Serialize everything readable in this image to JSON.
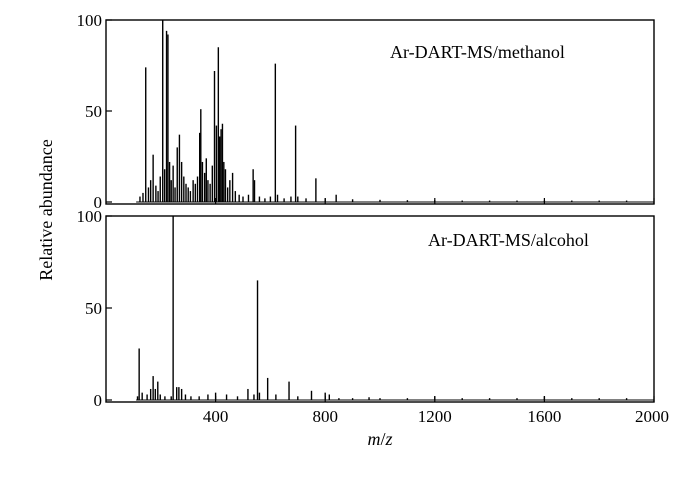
{
  "chart_data": [
    {
      "type": "bar",
      "label": "Ar-DART-MS/methanol",
      "ylim": [
        0,
        100
      ],
      "xlim": [
        0,
        2000
      ],
      "y_ticks": [
        "0",
        "50",
        "100"
      ],
      "peaks": [
        {
          "x": 124,
          "y": 3
        },
        {
          "x": 135,
          "y": 5
        },
        {
          "x": 145,
          "y": 74
        },
        {
          "x": 155,
          "y": 8
        },
        {
          "x": 163,
          "y": 12
        },
        {
          "x": 172,
          "y": 26
        },
        {
          "x": 182,
          "y": 9
        },
        {
          "x": 190,
          "y": 6
        },
        {
          "x": 198,
          "y": 14
        },
        {
          "x": 207,
          "y": 100
        },
        {
          "x": 214,
          "y": 18
        },
        {
          "x": 221,
          "y": 94
        },
        {
          "x": 226,
          "y": 92
        },
        {
          "x": 232,
          "y": 22
        },
        {
          "x": 238,
          "y": 12
        },
        {
          "x": 245,
          "y": 20
        },
        {
          "x": 252,
          "y": 8
        },
        {
          "x": 260,
          "y": 30
        },
        {
          "x": 268,
          "y": 37
        },
        {
          "x": 276,
          "y": 22
        },
        {
          "x": 284,
          "y": 14
        },
        {
          "x": 292,
          "y": 10
        },
        {
          "x": 300,
          "y": 8
        },
        {
          "x": 308,
          "y": 6
        },
        {
          "x": 318,
          "y": 12
        },
        {
          "x": 326,
          "y": 10
        },
        {
          "x": 334,
          "y": 14
        },
        {
          "x": 342,
          "y": 38
        },
        {
          "x": 346,
          "y": 51
        },
        {
          "x": 352,
          "y": 22
        },
        {
          "x": 360,
          "y": 16
        },
        {
          "x": 366,
          "y": 24
        },
        {
          "x": 372,
          "y": 12
        },
        {
          "x": 380,
          "y": 10
        },
        {
          "x": 388,
          "y": 20
        },
        {
          "x": 396,
          "y": 72
        },
        {
          "x": 403,
          "y": 42
        },
        {
          "x": 410,
          "y": 85
        },
        {
          "x": 415,
          "y": 36
        },
        {
          "x": 420,
          "y": 40
        },
        {
          "x": 425,
          "y": 43
        },
        {
          "x": 430,
          "y": 22
        },
        {
          "x": 436,
          "y": 18
        },
        {
          "x": 444,
          "y": 8
        },
        {
          "x": 452,
          "y": 12
        },
        {
          "x": 462,
          "y": 16
        },
        {
          "x": 472,
          "y": 6
        },
        {
          "x": 486,
          "y": 4
        },
        {
          "x": 500,
          "y": 3
        },
        {
          "x": 520,
          "y": 4
        },
        {
          "x": 537,
          "y": 18
        },
        {
          "x": 542,
          "y": 12
        },
        {
          "x": 560,
          "y": 3
        },
        {
          "x": 580,
          "y": 2
        },
        {
          "x": 600,
          "y": 3
        },
        {
          "x": 618,
          "y": 76
        },
        {
          "x": 626,
          "y": 4
        },
        {
          "x": 650,
          "y": 2
        },
        {
          "x": 675,
          "y": 3
        },
        {
          "x": 692,
          "y": 42
        },
        {
          "x": 700,
          "y": 3
        },
        {
          "x": 730,
          "y": 2
        },
        {
          "x": 766,
          "y": 13
        },
        {
          "x": 800,
          "y": 2
        },
        {
          "x": 840,
          "y": 4
        },
        {
          "x": 900,
          "y": 1.5
        },
        {
          "x": 1000,
          "y": 1.2
        },
        {
          "x": 1100,
          "y": 1
        },
        {
          "x": 1200,
          "y": 1
        },
        {
          "x": 1300,
          "y": 0.8
        },
        {
          "x": 1400,
          "y": 0.8
        },
        {
          "x": 1500,
          "y": 0.8
        },
        {
          "x": 1600,
          "y": 0.8
        },
        {
          "x": 1700,
          "y": 0.8
        },
        {
          "x": 1800,
          "y": 0.8
        },
        {
          "x": 1900,
          "y": 0.8
        }
      ]
    },
    {
      "type": "bar",
      "label": "Ar-DART-MS/alcohol",
      "ylim": [
        0,
        100
      ],
      "xlim": [
        0,
        2000
      ],
      "y_ticks": [
        "0",
        "50",
        "100"
      ],
      "x_ticks": [
        "400",
        "800",
        "1200",
        "1600",
        "2000"
      ],
      "x_tick_values": [
        400,
        800,
        1200,
        1600,
        2000
      ],
      "peaks": [
        {
          "x": 115,
          "y": 2
        },
        {
          "x": 121,
          "y": 28
        },
        {
          "x": 132,
          "y": 4
        },
        {
          "x": 150,
          "y": 3
        },
        {
          "x": 163,
          "y": 6
        },
        {
          "x": 172,
          "y": 13
        },
        {
          "x": 180,
          "y": 6
        },
        {
          "x": 189,
          "y": 10
        },
        {
          "x": 198,
          "y": 3
        },
        {
          "x": 215,
          "y": 2
        },
        {
          "x": 238,
          "y": 2
        },
        {
          "x": 245,
          "y": 100
        },
        {
          "x": 258,
          "y": 7
        },
        {
          "x": 266,
          "y": 7
        },
        {
          "x": 276,
          "y": 6
        },
        {
          "x": 290,
          "y": 3
        },
        {
          "x": 310,
          "y": 2
        },
        {
          "x": 340,
          "y": 2
        },
        {
          "x": 372,
          "y": 3
        },
        {
          "x": 400,
          "y": 4
        },
        {
          "x": 440,
          "y": 3
        },
        {
          "x": 480,
          "y": 2
        },
        {
          "x": 518,
          "y": 6
        },
        {
          "x": 540,
          "y": 3
        },
        {
          "x": 553,
          "y": 65
        },
        {
          "x": 560,
          "y": 4
        },
        {
          "x": 590,
          "y": 12
        },
        {
          "x": 620,
          "y": 3
        },
        {
          "x": 668,
          "y": 10
        },
        {
          "x": 700,
          "y": 2
        },
        {
          "x": 750,
          "y": 5
        },
        {
          "x": 800,
          "y": 4
        },
        {
          "x": 815,
          "y": 3
        },
        {
          "x": 850,
          "y": 1
        },
        {
          "x": 900,
          "y": 1
        },
        {
          "x": 960,
          "y": 1.5
        },
        {
          "x": 1000,
          "y": 1
        },
        {
          "x": 1100,
          "y": 1
        },
        {
          "x": 1200,
          "y": 2
        },
        {
          "x": 1300,
          "y": 1
        },
        {
          "x": 1400,
          "y": 1
        },
        {
          "x": 1500,
          "y": 1
        },
        {
          "x": 1600,
          "y": 2
        },
        {
          "x": 1700,
          "y": 1
        },
        {
          "x": 1800,
          "y": 1
        },
        {
          "x": 1900,
          "y": 1
        }
      ]
    }
  ],
  "axes": {
    "ylabel": "Relative abundance",
    "xlabel_italic_m": "m",
    "xlabel_slash": "/",
    "xlabel_italic_z": "z"
  }
}
